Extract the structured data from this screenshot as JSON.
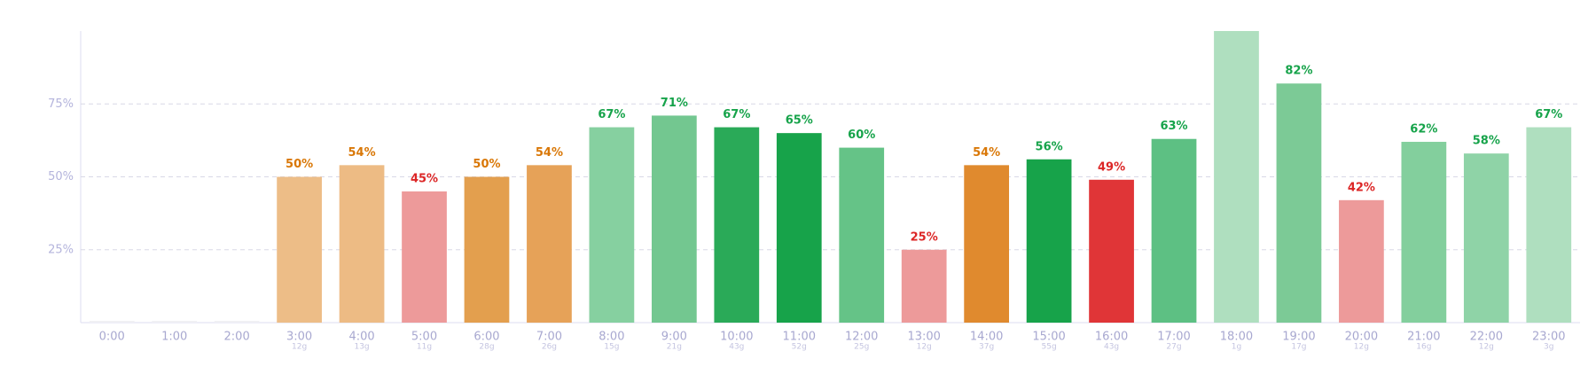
{
  "chart_data": {
    "type": "bar",
    "categories": [
      "0:00",
      "1:00",
      "2:00",
      "3:00",
      "4:00",
      "5:00",
      "6:00",
      "7:00",
      "8:00",
      "9:00",
      "10:00",
      "11:00",
      "12:00",
      "13:00",
      "14:00",
      "15:00",
      "16:00",
      "17:00",
      "18:00",
      "19:00",
      "20:00",
      "21:00",
      "22:00",
      "23:00"
    ],
    "sublabels": [
      null,
      null,
      null,
      "12g",
      "13g",
      "11g",
      "28g",
      "26g",
      "15g",
      "21g",
      "43g",
      "52g",
      "25g",
      "12g",
      "37g",
      "55g",
      "43g",
      "27g",
      "1g",
      "17g",
      "12g",
      "16g",
      "12g",
      "3g"
    ],
    "values": [
      null,
      null,
      null,
      50,
      54,
      45,
      50,
      54,
      67,
      71,
      67,
      65,
      60,
      25,
      54,
      56,
      49,
      63,
      100,
      82,
      42,
      62,
      58,
      67
    ],
    "value_labels": [
      null,
      null,
      null,
      "50%",
      "54%",
      "45%",
      "50%",
      "54%",
      "67%",
      "71%",
      "67%",
      "65%",
      "60%",
      "25%",
      "54%",
      "56%",
      "49%",
      "63%",
      null,
      "82%",
      "42%",
      "62%",
      "58%",
      "67%"
    ],
    "colors": [
      null,
      null,
      null,
      "#edbd87",
      "#edbb84",
      "#ed9a9a",
      "#e39f4e",
      "#e6a258",
      "#86d0a0",
      "#73c790",
      "#2aaa58",
      "#17a34a",
      "#65c387",
      "#ed9a9a",
      "#e08a2e",
      "#17a34a",
      "#e03537",
      "#5dc083",
      "#afdfbf",
      "#7cca96",
      "#ed9a9a",
      "#83cf9d",
      "#8fd3a7",
      "#afdfbf"
    ],
    "label_colors": [
      null,
      null,
      null,
      "#d97706",
      "#d97706",
      "#dc2626",
      "#d97706",
      "#d97706",
      "#16a34a",
      "#16a34a",
      "#16a34a",
      "#16a34a",
      "#16a34a",
      "#dc2626",
      "#d97706",
      "#16a34a",
      "#dc2626",
      "#16a34a",
      null,
      "#16a34a",
      "#dc2626",
      "#16a34a",
      "#16a34a",
      "#16a34a"
    ],
    "ylim": [
      0,
      100
    ],
    "yticks": [
      {
        "value": 25,
        "label": "25%"
      },
      {
        "value": 50,
        "label": "50%"
      },
      {
        "value": 75,
        "label": "75%"
      }
    ],
    "grid": true
  }
}
